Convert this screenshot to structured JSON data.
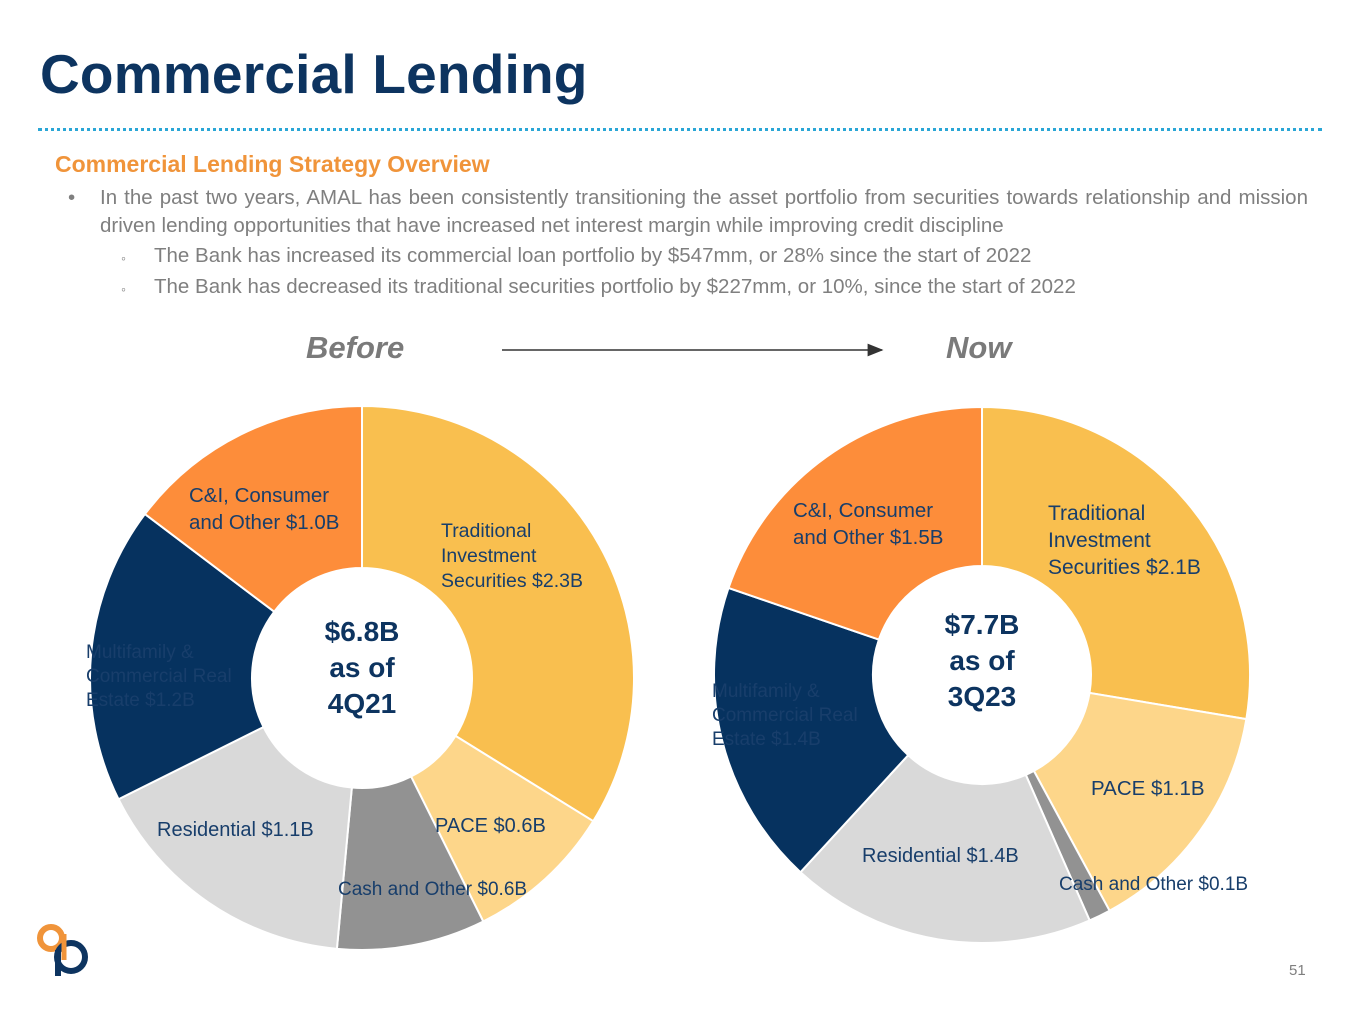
{
  "page": {
    "title": "Commercial Lending",
    "subtitle": "Commercial Lending Strategy Overview",
    "bullet_main": "In the past two years, AMAL has been consistently transitioning the asset portfolio from securities towards relationship and mission driven lending opportunities that have increased net interest margin while improving credit discipline",
    "sub_bullets": [
      "The Bank has increased its commercial loan portfolio by $547mm, or 28% since the start of 2022",
      "The Bank has decreased its traditional securities portfolio by $227mm, or 10%, since the start of 2022"
    ],
    "bullet_symbol": "•",
    "sub_bullet_symbol": "◦",
    "page_number": "51"
  },
  "colors": {
    "title": "#0d3460",
    "subtitle": "#f0943a",
    "dotted_rule": "#2aa6d6",
    "body_text": "#7f7f7f",
    "label_text": "#183e6b",
    "center_text": "#0d3460",
    "securities": "#f9bf4f",
    "pace": "#fdd68a",
    "cash_other": "#929292",
    "residential": "#d9d9d9",
    "multifamily_cre": "#06325f",
    "ci_consumer": "#fd8d3a"
  },
  "chart_data": [
    {
      "type": "pie",
      "style": "donut",
      "title": "Before",
      "center_label": [
        "$6.8B",
        "as of",
        "4Q21"
      ],
      "total": 6.8,
      "unit": "$B",
      "slices": [
        {
          "key": "securities",
          "label": "Traditional Investment Securities $2.3B",
          "label_lines": [
            "Traditional",
            "Investment",
            "Securities $2.3B"
          ],
          "value": 2.3
        },
        {
          "key": "pace",
          "label": "PACE $0.6B",
          "label_lines": [
            "PACE $0.6B"
          ],
          "value": 0.6
        },
        {
          "key": "cash_other",
          "label": "Cash and Other $0.6B",
          "label_lines": [
            "Cash and Other $0.6B"
          ],
          "value": 0.6
        },
        {
          "key": "residential",
          "label": "Residential $1.1B",
          "label_lines": [
            "Residential $1.1B"
          ],
          "value": 1.1
        },
        {
          "key": "multifamily_cre",
          "label": "Multifamily & Commercial Real Estate $1.2B",
          "label_lines": [
            "Multifamily &",
            "Commercial Real",
            "Estate $1.2B"
          ],
          "value": 1.2
        },
        {
          "key": "ci_consumer",
          "label": "C&I, Consumer and Other $1.0B",
          "label_lines": [
            "C&I, Consumer",
            "and Other $1.0B"
          ],
          "value": 1.0
        }
      ]
    },
    {
      "type": "pie",
      "style": "donut",
      "title": "Now",
      "center_label": [
        "$7.7B",
        "as of",
        "3Q23"
      ],
      "total": 7.7,
      "unit": "$B",
      "slices": [
        {
          "key": "securities",
          "label": "Traditional Investment Securities $2.1B",
          "label_lines": [
            "Traditional",
            "Investment",
            "Securities $2.1B"
          ],
          "value": 2.1
        },
        {
          "key": "pace",
          "label": "PACE $1.1B",
          "label_lines": [
            "PACE $1.1B"
          ],
          "value": 1.1
        },
        {
          "key": "cash_other",
          "label": "Cash and Other $0.1B",
          "label_lines": [
            "Cash and Other $0.1B"
          ],
          "value": 0.1
        },
        {
          "key": "residential",
          "label": "Residential $1.4B",
          "label_lines": [
            "Residential $1.4B"
          ],
          "value": 1.4
        },
        {
          "key": "multifamily_cre",
          "label": "Multifamily & Commercial Real Estate $1.4B",
          "label_lines": [
            "Multifamily &",
            "Commercial Real",
            "Estate $1.4B"
          ],
          "value": 1.4
        },
        {
          "key": "ci_consumer",
          "label": "C&I, Consumer and Other $1.5B",
          "label_lines": [
            "C&I, Consumer",
            "and Other $1.5B"
          ],
          "value": 1.5
        }
      ]
    }
  ]
}
